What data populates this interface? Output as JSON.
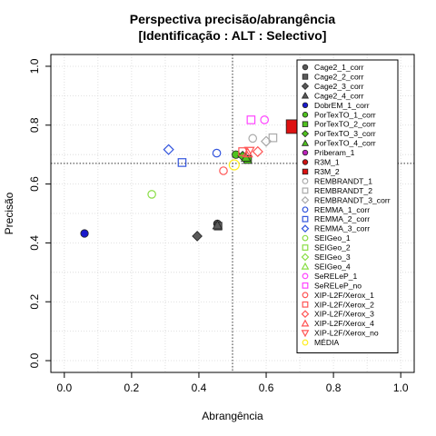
{
  "chart_data": {
    "type": "scatter",
    "title": "Perspectiva precisão/abrangência",
    "subtitle": "[Identificação : ALT : Selectivo]",
    "xlabel": "Abrangência",
    "ylabel": "Precisão",
    "xlim": [
      0,
      1
    ],
    "ylim": [
      0,
      1
    ],
    "x_ticks": [
      "0.0",
      "0.2",
      "0.4",
      "0.6",
      "0.8",
      "1.0"
    ],
    "y_ticks": [
      "0.0",
      "0.2",
      "0.4",
      "0.6",
      "0.8",
      "1.0"
    ],
    "grid": true,
    "legend_position": "right",
    "reference_lines": {
      "x": 0.5,
      "y": 0.67
    },
    "series": [
      {
        "name": "Cage2_1_corr",
        "color": "#5a5a5a",
        "shape": "circle",
        "filled": true,
        "x": 0.455,
        "y": 0.465
      },
      {
        "name": "Cage2_2_corr",
        "color": "#5a5a5a",
        "shape": "square",
        "filled": true,
        "x": 0.457,
        "y": 0.457
      },
      {
        "name": "Cage2_3_corr",
        "color": "#5a5a5a",
        "shape": "diamond",
        "filled": true,
        "x": 0.395,
        "y": 0.423
      },
      {
        "name": "Cage2_4_corr",
        "color": "#5a5a5a",
        "shape": "triangle-up",
        "filled": true,
        "x": 0.455,
        "y": 0.46
      },
      {
        "name": "DobrEM_1_corr",
        "color": "#1a1acc",
        "shape": "circle",
        "filled": true,
        "x": 0.06,
        "y": 0.432
      },
      {
        "name": "PorTexTO_1_corr",
        "color": "#4fc21f",
        "shape": "circle",
        "filled": true,
        "x": 0.51,
        "y": 0.7
      },
      {
        "name": "PorTexTO_2_corr",
        "color": "#4fc21f",
        "shape": "square",
        "filled": true,
        "x": 0.545,
        "y": 0.683
      },
      {
        "name": "PorTexTO_3_corr",
        "color": "#4fc21f",
        "shape": "diamond",
        "filled": true,
        "x": 0.53,
        "y": 0.695
      },
      {
        "name": "PorTexTO_4_corr",
        "color": "#4fc21f",
        "shape": "triangle-up",
        "filled": true,
        "x": 0.54,
        "y": 0.69
      },
      {
        "name": "Priberam_1",
        "color": "#bb22bb",
        "shape": "circle",
        "filled": true,
        "x": null,
        "y": null
      },
      {
        "name": "R3M_1",
        "color": "#cc1111",
        "shape": "circle",
        "filled": true,
        "x": null,
        "y": null
      },
      {
        "name": "R3M_2",
        "color": "#dd1111",
        "shape": "square",
        "filled": true,
        "x": 0.68,
        "y": 0.795
      },
      {
        "name": "REMBRANDT_1",
        "color": "#aaaaaa",
        "shape": "circle",
        "filled": false,
        "x": 0.56,
        "y": 0.755
      },
      {
        "name": "REMBRANDT_2",
        "color": "#aaaaaa",
        "shape": "square",
        "filled": false,
        "x": 0.62,
        "y": 0.757
      },
      {
        "name": "REMBRANDT_3_corr",
        "color": "#aaaaaa",
        "shape": "diamond",
        "filled": false,
        "x": 0.6,
        "y": 0.745
      },
      {
        "name": "REMMA_1_corr",
        "color": "#3355dd",
        "shape": "circle",
        "filled": false,
        "x": 0.453,
        "y": 0.705
      },
      {
        "name": "REMMA_2_corr",
        "color": "#3355dd",
        "shape": "square",
        "filled": false,
        "x": 0.35,
        "y": 0.673
      },
      {
        "name": "REMMA_3_corr",
        "color": "#3355dd",
        "shape": "diamond",
        "filled": false,
        "x": 0.31,
        "y": 0.717
      },
      {
        "name": "SEIGeo_1",
        "color": "#88dd44",
        "shape": "circle",
        "filled": false,
        "x": 0.26,
        "y": 0.565
      },
      {
        "name": "SEIGeo_2",
        "color": "#88dd44",
        "shape": "square",
        "filled": false,
        "x": null,
        "y": null
      },
      {
        "name": "SEIGeo_3",
        "color": "#88dd44",
        "shape": "diamond",
        "filled": false,
        "x": null,
        "y": null
      },
      {
        "name": "SEIGeo_4",
        "color": "#88dd44",
        "shape": "triangle-up",
        "filled": false,
        "x": null,
        "y": null
      },
      {
        "name": "SeRELeP_1",
        "color": "#ff44ff",
        "shape": "circle",
        "filled": false,
        "x": 0.595,
        "y": 0.818
      },
      {
        "name": "SeRELeP_no",
        "color": "#ff44ff",
        "shape": "square",
        "filled": false,
        "x": 0.555,
        "y": 0.818
      },
      {
        "name": "XIP-L2F/Xerox_1",
        "color": "#ff5555",
        "shape": "circle",
        "filled": false,
        "x": 0.473,
        "y": 0.645
      },
      {
        "name": "XIP-L2F/Xerox_2",
        "color": "#ff5555",
        "shape": "square",
        "filled": false,
        "x": 0.53,
        "y": 0.71
      },
      {
        "name": "XIP-L2F/Xerox_3",
        "color": "#ff5555",
        "shape": "diamond",
        "filled": false,
        "x": 0.575,
        "y": 0.71
      },
      {
        "name": "XIP-L2F/Xerox_4",
        "color": "#ff5555",
        "shape": "triangle-up",
        "filled": false,
        "x": 0.545,
        "y": 0.705
      },
      {
        "name": "XIP-L2F/Xerox_no",
        "color": "#ff5555",
        "shape": "triangle-down",
        "filled": false,
        "x": 0.55,
        "y": 0.712
      },
      {
        "name": "MÉDIA",
        "color": "#ffee22",
        "shape": "circle",
        "filled": false,
        "x": 0.505,
        "y": 0.665
      }
    ]
  }
}
